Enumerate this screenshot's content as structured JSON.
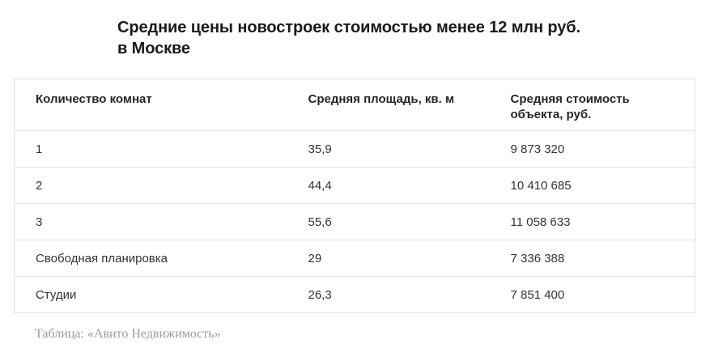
{
  "chart_data": {
    "type": "table",
    "title": "Средние цены новостроек стоимостью менее 12 млн руб. в Москве",
    "columns": [
      "Количество комнат",
      "Средняя площадь, кв. м",
      "Средняя стоимость объекта, руб."
    ],
    "rows": [
      [
        "1",
        "35,9",
        "9 873 320"
      ],
      [
        "2",
        "44,4",
        "10 410 685"
      ],
      [
        "3",
        "55,6",
        "11 058 633"
      ],
      [
        "Свободная планировка",
        "29",
        "7 336 388"
      ],
      [
        "Студии",
        "26,3",
        "7 851 400"
      ]
    ],
    "source": "Таблица: «Авито Недвижимость»",
    "layout_hints": {
      "grid": "horizontal row separators only, outer border, no column lines",
      "legend": "none"
    }
  },
  "header": {
    "title_line1": "Средние цены новостроек стоимостью менее 12 млн руб.",
    "title_line2": "в Москве"
  },
  "colors": {
    "background": "#ffffff",
    "title_text": "#1a1a1a",
    "header_text": "#262626",
    "cell_text": "#333333",
    "border": "#e0e0e0",
    "caption_text": "#9b9b9b"
  }
}
